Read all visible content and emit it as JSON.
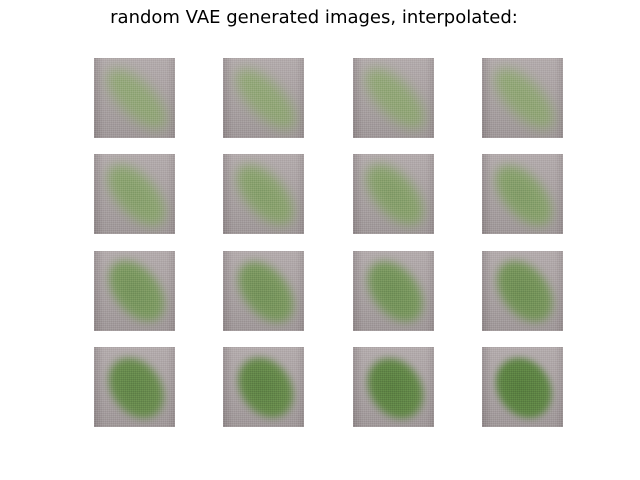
{
  "figure": {
    "title": "random VAE generated images, interpolated:",
    "rows": 4,
    "cols": 4,
    "colors": {
      "background": "#ffffff",
      "tile_gray_top": "#b2aaab",
      "tile_gray_bottom": "#9e9697",
      "leaf_light": "#8aa86a",
      "leaf_dark": "#567c3e"
    },
    "tiles": [
      {
        "id": "r1c1",
        "interp": 0.0
      },
      {
        "id": "r1c2",
        "interp": 0.02
      },
      {
        "id": "r1c3",
        "interp": 0.04
      },
      {
        "id": "r1c4",
        "interp": 0.06
      },
      {
        "id": "r2c1",
        "interp": 0.25
      },
      {
        "id": "r2c2",
        "interp": 0.28
      },
      {
        "id": "r2c3",
        "interp": 0.31
      },
      {
        "id": "r2c4",
        "interp": 0.34
      },
      {
        "id": "r3c1",
        "interp": 0.55
      },
      {
        "id": "r3c2",
        "interp": 0.58
      },
      {
        "id": "r3c3",
        "interp": 0.62
      },
      {
        "id": "r3c4",
        "interp": 0.65
      },
      {
        "id": "r4c1",
        "interp": 0.85
      },
      {
        "id": "r4c2",
        "interp": 0.9
      },
      {
        "id": "r4c3",
        "interp": 0.95
      },
      {
        "id": "r4c4",
        "interp": 1.0
      }
    ]
  }
}
